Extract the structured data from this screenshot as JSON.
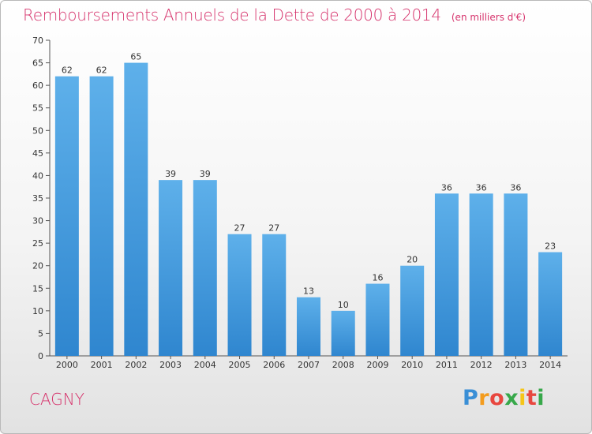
{
  "chart_data": {
    "type": "bar",
    "title": "Remboursements Annuels de la Dette de 2000 à 2014",
    "unit_note": "(en milliers d'€)",
    "categories": [
      "2000",
      "2001",
      "2002",
      "2003",
      "2004",
      "2005",
      "2006",
      "2007",
      "2008",
      "2009",
      "2010",
      "2011",
      "2012",
      "2013",
      "2014"
    ],
    "values": [
      62,
      62,
      65,
      39,
      39,
      27,
      27,
      13,
      10,
      16,
      20,
      36,
      36,
      36,
      23
    ],
    "ylim": [
      0,
      70
    ],
    "yticks": [
      0,
      5,
      10,
      15,
      20,
      25,
      30,
      35,
      40,
      45,
      50,
      55,
      60,
      65,
      70
    ],
    "grid": false,
    "xlabel": "",
    "ylabel": "",
    "bar_color": "#4a9fe0"
  },
  "footer": {
    "city": "CAGNY",
    "logo_letters": [
      "P",
      "r",
      "o",
      "x",
      "i",
      "t",
      "i"
    ]
  }
}
